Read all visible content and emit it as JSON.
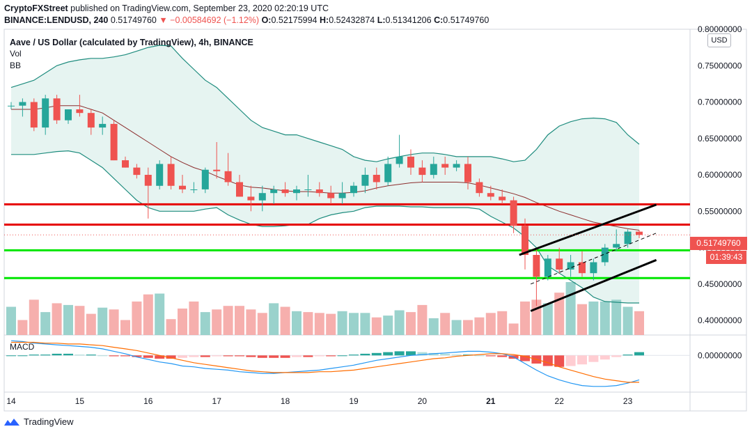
{
  "header": {
    "publisher": "CryptoFXStreet",
    "published_text": " published on TradingView.com, September 23, 2020 02:20:19 UTC",
    "symbol": "BINANCE:LENDUSD, 240",
    "last": "0.51749760",
    "change": "▼ −0.00584692 (−1.12%)",
    "o_label": "O:",
    "o_val": "0.52175994",
    "h_label": "H:",
    "h_val": "0.52432874",
    "l_label": "L:",
    "l_val": "0.51341206",
    "c_label": "C:",
    "c_val": "0.51749760"
  },
  "legend": {
    "title": "Aave / US Dollar (calculated by TradingView), 4h, BINANCE",
    "vol": "Vol",
    "bb": "BB",
    "macd": "MACD"
  },
  "currency_button": "USD",
  "last_price_tag": "0.51749760",
  "countdown_tag": "01:39:43",
  "footer": {
    "brand": "TradingView"
  },
  "colors": {
    "up": "#26a69a",
    "down": "#ef5350",
    "up_vol": "#8fcdc6",
    "down_vol": "#f5a6a4",
    "bb_band": "#1e8c7e",
    "bb_basis": "#8c2d2d",
    "bb_fill": "#e6f4f1",
    "support": "#00e600",
    "resistance": "#e60000",
    "macd_line": "#2196f3",
    "signal_line": "#ff6d00"
  },
  "chart_data": {
    "type": "candlestick",
    "price_axis": {
      "ylim": [
        0.38,
        0.8
      ],
      "ticks": [
        "0.80000000",
        "0.75000000",
        "0.70000000",
        "0.65000000",
        "0.60000000",
        "0.55000000",
        "0.50000000",
        "0.45000000",
        "0.40000000"
      ],
      "tick_values": [
        0.8,
        0.75,
        0.7,
        0.65,
        0.6,
        0.55,
        0.5,
        0.45,
        0.4
      ]
    },
    "macd_axis": {
      "ylim": [
        -0.045,
        0.025
      ],
      "ticks": [
        "0.00000000"
      ],
      "tick_values": [
        0
      ]
    },
    "x_axis": {
      "labels": [
        "14",
        "15",
        "16",
        "17",
        "18",
        "19",
        "20",
        "21",
        "22",
        "23"
      ],
      "label_index": [
        0,
        6,
        12,
        18,
        24,
        30,
        36,
        42,
        48,
        54
      ]
    },
    "candles": [
      [
        0.695,
        0.7,
        0.69,
        0.695
      ],
      [
        0.695,
        0.705,
        0.68,
        0.7
      ],
      [
        0.7,
        0.705,
        0.66,
        0.665
      ],
      [
        0.665,
        0.71,
        0.655,
        0.705
      ],
      [
        0.705,
        0.71,
        0.67,
        0.675
      ],
      [
        0.675,
        0.69,
        0.67,
        0.69
      ],
      [
        0.69,
        0.71,
        0.68,
        0.685
      ],
      [
        0.685,
        0.69,
        0.655,
        0.665
      ],
      [
        0.665,
        0.68,
        0.655,
        0.67
      ],
      [
        0.67,
        0.675,
        0.62,
        0.62
      ],
      [
        0.62,
        0.625,
        0.61,
        0.61
      ],
      [
        0.61,
        0.615,
        0.595,
        0.6
      ],
      [
        0.6,
        0.61,
        0.54,
        0.585
      ],
      [
        0.585,
        0.62,
        0.58,
        0.615
      ],
      [
        0.615,
        0.625,
        0.58,
        0.585
      ],
      [
        0.585,
        0.6,
        0.575,
        0.58
      ],
      [
        0.58,
        0.59,
        0.575,
        0.58
      ],
      [
        0.58,
        0.61,
        0.575,
        0.607
      ],
      [
        0.607,
        0.645,
        0.595,
        0.605
      ],
      [
        0.605,
        0.63,
        0.585,
        0.59
      ],
      [
        0.59,
        0.6,
        0.57,
        0.57
      ],
      [
        0.57,
        0.585,
        0.55,
        0.565
      ],
      [
        0.565,
        0.585,
        0.55,
        0.575
      ],
      [
        0.575,
        0.585,
        0.56,
        0.58
      ],
      [
        0.58,
        0.59,
        0.57,
        0.575
      ],
      [
        0.575,
        0.585,
        0.565,
        0.58
      ],
      [
        0.58,
        0.6,
        0.57,
        0.58
      ],
      [
        0.58,
        0.59,
        0.57,
        0.575
      ],
      [
        0.575,
        0.585,
        0.56,
        0.568
      ],
      [
        0.568,
        0.59,
        0.56,
        0.575
      ],
      [
        0.575,
        0.59,
        0.57,
        0.585
      ],
      [
        0.585,
        0.61,
        0.575,
        0.6
      ],
      [
        0.6,
        0.61,
        0.58,
        0.59
      ],
      [
        0.59,
        0.625,
        0.585,
        0.615
      ],
      [
        0.615,
        0.655,
        0.61,
        0.625
      ],
      [
        0.625,
        0.635,
        0.6,
        0.61
      ],
      [
        0.61,
        0.62,
        0.59,
        0.6
      ],
      [
        0.6,
        0.625,
        0.595,
        0.615
      ],
      [
        0.615,
        0.625,
        0.6,
        0.61
      ],
      [
        0.61,
        0.62,
        0.605,
        0.615
      ],
      [
        0.615,
        0.625,
        0.58,
        0.59
      ],
      [
        0.59,
        0.595,
        0.57,
        0.575
      ],
      [
        0.575,
        0.585,
        0.565,
        0.57
      ],
      [
        0.57,
        0.58,
        0.56,
        0.565
      ],
      [
        0.565,
        0.57,
        0.52,
        0.53
      ],
      [
        0.53,
        0.54,
        0.47,
        0.49
      ],
      [
        0.49,
        0.5,
        0.42,
        0.46
      ],
      [
        0.46,
        0.49,
        0.455,
        0.485
      ],
      [
        0.485,
        0.5,
        0.465,
        0.47
      ],
      [
        0.47,
        0.49,
        0.46,
        0.48
      ],
      [
        0.48,
        0.495,
        0.46,
        0.465
      ],
      [
        0.465,
        0.485,
        0.455,
        0.48
      ],
      [
        0.48,
        0.505,
        0.475,
        0.5
      ],
      [
        0.5,
        0.525,
        0.495,
        0.505
      ],
      [
        0.505,
        0.525,
        0.5,
        0.522
      ],
      [
        0.522,
        0.524,
        0.513,
        0.5175
      ]
    ],
    "volume": [
      32,
      17,
      40,
      26,
      36,
      34,
      33,
      24,
      31,
      29,
      17,
      38,
      46,
      47,
      18,
      30,
      38,
      26,
      29,
      33,
      33,
      29,
      25,
      36,
      32,
      27,
      26,
      25,
      24,
      27,
      25,
      25,
      20,
      22,
      28,
      26,
      34,
      19,
      25,
      17,
      17,
      20,
      25,
      27,
      13,
      38,
      40,
      36,
      48,
      60,
      35,
      38,
      38,
      40,
      32,
      27
    ],
    "volume_up_index": [
      0,
      3,
      5,
      8,
      13,
      17,
      23,
      25,
      29,
      30,
      31,
      33,
      34,
      37,
      39,
      47,
      49,
      51,
      52,
      53,
      54
    ],
    "bb_upper": [
      0.72,
      0.725,
      0.73,
      0.74,
      0.75,
      0.755,
      0.758,
      0.76,
      0.76,
      0.762,
      0.765,
      0.77,
      0.775,
      0.778,
      0.777,
      0.76,
      0.745,
      0.73,
      0.72,
      0.705,
      0.69,
      0.675,
      0.665,
      0.66,
      0.655,
      0.655,
      0.65,
      0.645,
      0.64,
      0.635,
      0.625,
      0.62,
      0.618,
      0.622,
      0.625,
      0.628,
      0.63,
      0.63,
      0.628,
      0.625,
      0.625,
      0.625,
      0.625,
      0.622,
      0.618,
      0.62,
      0.635,
      0.655,
      0.667,
      0.673,
      0.677,
      0.678,
      0.677,
      0.672,
      0.655,
      0.642
    ],
    "bb_basis": [
      0.69,
      0.69,
      0.69,
      0.692,
      0.695,
      0.695,
      0.695,
      0.69,
      0.685,
      0.675,
      0.665,
      0.655,
      0.645,
      0.635,
      0.625,
      0.617,
      0.61,
      0.605,
      0.598,
      0.592,
      0.586,
      0.583,
      0.582,
      0.58,
      0.578,
      0.577,
      0.577,
      0.576,
      0.575,
      0.575,
      0.576,
      0.578,
      0.582,
      0.585,
      0.587,
      0.589,
      0.59,
      0.59,
      0.59,
      0.59,
      0.589,
      0.586,
      0.582,
      0.578,
      0.574,
      0.569,
      0.562,
      0.556,
      0.55,
      0.545,
      0.54,
      0.535,
      0.532,
      0.529,
      0.526,
      0.524
    ],
    "bb_lower": [
      0.628,
      0.628,
      0.628,
      0.63,
      0.632,
      0.633,
      0.63,
      0.62,
      0.61,
      0.595,
      0.58,
      0.565,
      0.555,
      0.55,
      0.55,
      0.55,
      0.55,
      0.553,
      0.555,
      0.545,
      0.538,
      0.532,
      0.529,
      0.529,
      0.53,
      0.532,
      0.532,
      0.54,
      0.545,
      0.548,
      0.55,
      0.555,
      0.557,
      0.557,
      0.557,
      0.556,
      0.556,
      0.555,
      0.555,
      0.555,
      0.555,
      0.553,
      0.543,
      0.535,
      0.527,
      0.515,
      0.5,
      0.475,
      0.465,
      0.455,
      0.445,
      0.432,
      0.426,
      0.425,
      0.424,
      0.424
    ],
    "macd_hist": [
      0,
      0,
      0.001,
      0.001,
      0.002,
      0.002,
      0.001,
      0.001,
      0,
      -0.001,
      -0.001,
      -0.002,
      -0.003,
      -0.004,
      -0.004,
      -0.003,
      -0.002,
      -0.002,
      -0.001,
      -0.001,
      -0.001,
      -0.002,
      -0.003,
      -0.003,
      -0.003,
      -0.002,
      -0.002,
      -0.001,
      -0.001,
      0,
      0.001,
      0.002,
      0.003,
      0.004,
      0.005,
      0.005,
      0.004,
      0.003,
      0.002,
      0.001,
      0.001,
      0,
      -0.001,
      -0.002,
      -0.004,
      -0.007,
      -0.01,
      -0.013,
      -0.014,
      -0.013,
      -0.011,
      -0.008,
      -0.005,
      -0.002,
      0.001,
      0.004
    ],
    "macd_line": [
      0.018,
      0.017,
      0.015,
      0.014,
      0.013,
      0.012,
      0.011,
      0.01,
      0.008,
      0.005,
      0.002,
      -0.002,
      -0.005,
      -0.008,
      -0.01,
      -0.013,
      -0.014,
      -0.016,
      -0.017,
      -0.018,
      -0.02,
      -0.021,
      -0.022,
      -0.022,
      -0.021,
      -0.02,
      -0.019,
      -0.018,
      -0.016,
      -0.014,
      -0.012,
      -0.009,
      -0.006,
      -0.004,
      -0.002,
      0,
      0.001,
      0.002,
      0.003,
      0.004,
      0.005,
      0.005,
      0.004,
      0.002,
      -0.002,
      -0.01,
      -0.018,
      -0.025,
      -0.03,
      -0.034,
      -0.037,
      -0.038,
      -0.038,
      -0.037,
      -0.034,
      -0.03
    ],
    "signal_line": [
      0.016,
      0.016,
      0.016,
      0.015,
      0.015,
      0.014,
      0.014,
      0.013,
      0.012,
      0.01,
      0.008,
      0.006,
      0.003,
      0,
      -0.003,
      -0.006,
      -0.009,
      -0.011,
      -0.013,
      -0.015,
      -0.017,
      -0.019,
      -0.02,
      -0.021,
      -0.021,
      -0.021,
      -0.021,
      -0.02,
      -0.02,
      -0.019,
      -0.018,
      -0.016,
      -0.014,
      -0.012,
      -0.01,
      -0.008,
      -0.006,
      -0.004,
      -0.003,
      -0.001,
      0,
      0.001,
      0.002,
      0.002,
      0.001,
      -0.001,
      -0.005,
      -0.009,
      -0.014,
      -0.018,
      -0.022,
      -0.026,
      -0.029,
      -0.031,
      -0.033,
      -0.033
    ],
    "horizontal_levels": [
      {
        "kind": "resistance",
        "value": 0.5595
      },
      {
        "kind": "resistance",
        "value": 0.5316
      },
      {
        "kind": "support",
        "value": 0.4963
      },
      {
        "kind": "support",
        "value": 0.4583
      }
    ],
    "channel_lines": [
      {
        "style": "solid",
        "from": [
          44.5,
          0.49
        ],
        "to": [
          56.5,
          0.559
        ]
      },
      {
        "style": "solid",
        "from": [
          45.5,
          0.413
        ],
        "to": [
          56.5,
          0.483
        ]
      },
      {
        "style": "dashed",
        "from": [
          45.5,
          0.45
        ],
        "to": [
          56.5,
          0.52
        ]
      }
    ]
  }
}
